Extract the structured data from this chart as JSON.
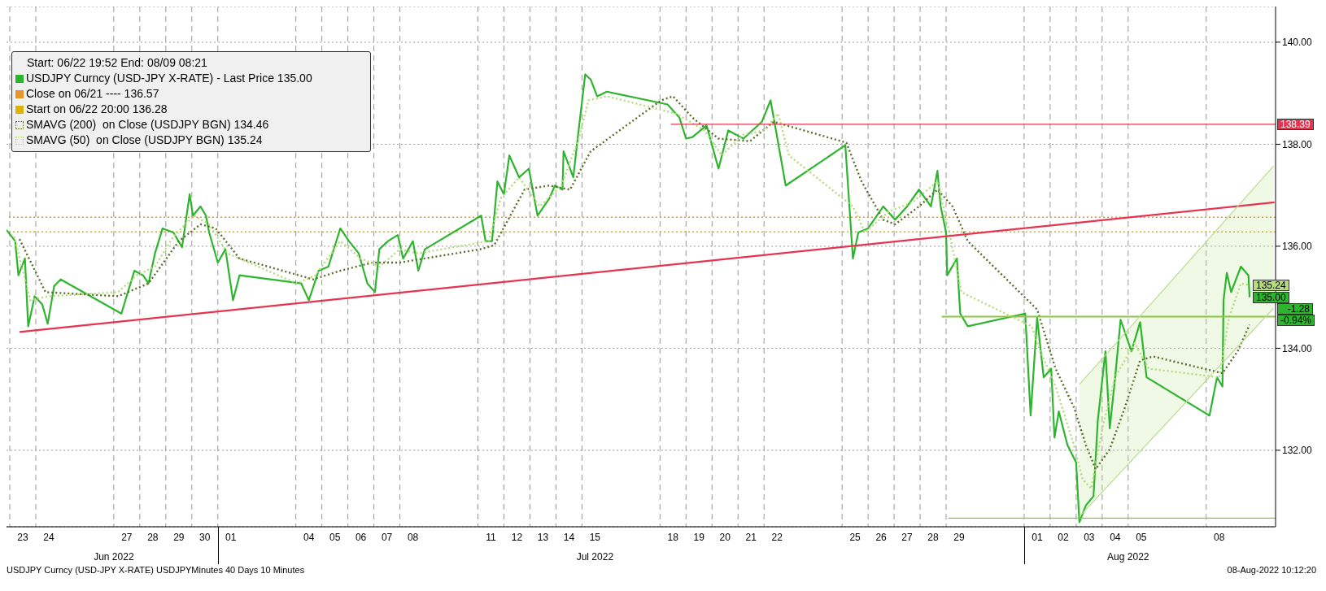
{
  "chart_data": {
    "type": "line",
    "legend_title": "Start: 06/22 19:52 End: 08/09 08:21",
    "legend": "top left",
    "grid": true,
    "xlim": [
      "2022-06-22T21:00",
      "2022-08-10T16:00"
    ],
    "ylim": [
      130.5,
      140.7
    ],
    "yticks": [
      {
        "value": 132,
        "label": "132.00"
      },
      {
        "value": 134,
        "label": "134.00"
      },
      {
        "value": 136,
        "label": "136.00"
      },
      {
        "value": 138,
        "label": "138.00"
      },
      {
        "value": 140,
        "label": "140.00"
      }
    ],
    "xticks": [
      {
        "value": "2022-06-23T12:00",
        "label": "23"
      },
      {
        "value": "2022-06-24T12:00",
        "label": "24"
      },
      {
        "value": "2022-06-27T12:00",
        "label": "27"
      },
      {
        "value": "2022-06-28T12:00",
        "label": "28"
      },
      {
        "value": "2022-06-29T12:00",
        "label": "29"
      },
      {
        "value": "2022-06-30T12:00",
        "label": "30"
      },
      {
        "value": "2022-07-01T12:00",
        "label": "01"
      },
      {
        "value": "2022-07-04T12:00",
        "label": "04"
      },
      {
        "value": "2022-07-05T12:00",
        "label": "05"
      },
      {
        "value": "2022-07-06T12:00",
        "label": "06"
      },
      {
        "value": "2022-07-07T12:00",
        "label": "07"
      },
      {
        "value": "2022-07-08T12:00",
        "label": "08"
      },
      {
        "value": "2022-07-11T12:00",
        "label": "11"
      },
      {
        "value": "2022-07-12T12:00",
        "label": "12"
      },
      {
        "value": "2022-07-13T12:00",
        "label": "13"
      },
      {
        "value": "2022-07-14T12:00",
        "label": "14"
      },
      {
        "value": "2022-07-15T12:00",
        "label": "15"
      },
      {
        "value": "2022-07-18T12:00",
        "label": "18"
      },
      {
        "value": "2022-07-19T12:00",
        "label": "19"
      },
      {
        "value": "2022-07-20T12:00",
        "label": "20"
      },
      {
        "value": "2022-07-21T12:00",
        "label": "21"
      },
      {
        "value": "2022-07-22T12:00",
        "label": "22"
      },
      {
        "value": "2022-07-25T12:00",
        "label": "25"
      },
      {
        "value": "2022-07-26T12:00",
        "label": "26"
      },
      {
        "value": "2022-07-27T12:00",
        "label": "27"
      },
      {
        "value": "2022-07-28T12:00",
        "label": "28"
      },
      {
        "value": "2022-07-29T12:00",
        "label": "29"
      },
      {
        "value": "2022-08-01T12:00",
        "label": "01"
      },
      {
        "value": "2022-08-02T12:00",
        "label": "02"
      },
      {
        "value": "2022-08-03T12:00",
        "label": "03"
      },
      {
        "value": "2022-08-04T12:00",
        "label": "04"
      },
      {
        "value": "2022-08-05T12:00",
        "label": "05"
      },
      {
        "value": "2022-08-08T12:00",
        "label": "08"
      }
    ],
    "series": [
      {
        "name": "USDJPY Curncy (USD-JPY X-RATE) - Last Price 135.00",
        "color": "#2db52d",
        "x": [
          "2022-06-22T21:00",
          "2022-06-23T05:00",
          "2022-06-23T08:00",
          "2022-06-23T14:00",
          "2022-06-23T17:00",
          "2022-06-23T23:00",
          "2022-06-24T06:00",
          "2022-06-24T11:00",
          "2022-06-24T17:00",
          "2022-06-24T23:00",
          "2022-06-27T07:00",
          "2022-06-27T13:00",
          "2022-06-27T19:00",
          "2022-06-28T03:00",
          "2022-06-28T08:00",
          "2022-06-28T14:00",
          "2022-06-28T21:00",
          "2022-06-29T07:00",
          "2022-06-29T15:00",
          "2022-06-29T22:00",
          "2022-06-30T01:00",
          "2022-06-30T08:00",
          "2022-06-30T13:00",
          "2022-06-30T16:00",
          "2022-07-01T00:00",
          "2022-07-01T07:00",
          "2022-07-01T14:00",
          "2022-07-01T20:00",
          "2022-07-04T05:00",
          "2022-07-04T12:00",
          "2022-07-04T21:00",
          "2022-07-05T06:00",
          "2022-07-05T17:00",
          "2022-07-06T01:00",
          "2022-07-06T10:00",
          "2022-07-06T18:00",
          "2022-07-07T01:00",
          "2022-07-07T05:00",
          "2022-07-07T13:00",
          "2022-07-07T22:00",
          "2022-07-08T03:00",
          "2022-07-08T12:00",
          "2022-07-08T17:00",
          "2022-07-08T23:00",
          "2022-07-11T03:00",
          "2022-07-11T07:00",
          "2022-07-11T13:00",
          "2022-07-11T18:00",
          "2022-07-12T00:00",
          "2022-07-12T05:00",
          "2022-07-12T14:00",
          "2022-07-12T23:00",
          "2022-07-13T07:00",
          "2022-07-13T18:00",
          "2022-07-13T23:00",
          "2022-07-14T06:00",
          "2022-07-14T07:00",
          "2022-07-14T16:00",
          "2022-07-14T20:00",
          "2022-07-15T03:00",
          "2022-07-15T08:00",
          "2022-07-15T14:00",
          "2022-07-15T23:00",
          "2022-07-18T07:00",
          "2022-07-18T18:00",
          "2022-07-19T00:00",
          "2022-07-19T06:00",
          "2022-07-19T19:00",
          "2022-07-20T06:00",
          "2022-07-20T15:00",
          "2022-07-21T05:00",
          "2022-07-21T22:00",
          "2022-07-22T06:00",
          "2022-07-22T11:00",
          "2022-07-22T20:00",
          "2022-07-25T03:00",
          "2022-07-25T10:00",
          "2022-07-25T15:00",
          "2022-07-26T00:00",
          "2022-07-26T14:00",
          "2022-07-27T01:00",
          "2022-07-27T12:00",
          "2022-07-27T23:00",
          "2022-07-28T10:00",
          "2022-07-28T16:00",
          "2022-07-28T19:00",
          "2022-07-29T00:00",
          "2022-07-29T01:00",
          "2022-07-29T10:00",
          "2022-07-29T13:00",
          "2022-07-29T20:00",
          "2022-08-01T01:00",
          "2022-08-01T06:00",
          "2022-08-01T12:00",
          "2022-08-01T18:00",
          "2022-08-02T01:00",
          "2022-08-02T04:00",
          "2022-08-02T08:00",
          "2022-08-02T16:00",
          "2022-08-03T00:00",
          "2022-08-03T03:00",
          "2022-08-03T09:00",
          "2022-08-03T16:00",
          "2022-08-03T20:00",
          "2022-08-04T03:00",
          "2022-08-04T07:00",
          "2022-08-04T12:00",
          "2022-08-04T17:00",
          "2022-08-05T03:00",
          "2022-08-05T11:00",
          "2022-08-05T17:00",
          "2022-08-08T03:00",
          "2022-08-08T10:00",
          "2022-08-08T15:00",
          "2022-08-08T16:00",
          "2022-08-08T19:00",
          "2022-08-08T23:00",
          "2022-08-09T08:00",
          "2022-08-09T15:00",
          "2022-08-09T16:00"
        ],
        "values": [
          136.32,
          136.1,
          135.43,
          135.76,
          134.43,
          135.02,
          134.86,
          134.48,
          135.22,
          135.35,
          134.68,
          135.1,
          135.52,
          135.43,
          135.27,
          135.86,
          136.35,
          136.27,
          135.98,
          137.02,
          136.6,
          136.78,
          136.6,
          136.27,
          135.68,
          135.94,
          134.94,
          135.43,
          135.27,
          134.94,
          135.52,
          135.6,
          136.35,
          136.1,
          135.86,
          135.27,
          135.1,
          135.94,
          136.1,
          136.22,
          135.76,
          136.1,
          135.52,
          135.94,
          136.6,
          136.1,
          136.1,
          137.27,
          137.02,
          137.78,
          137.35,
          137.52,
          136.6,
          136.94,
          137.19,
          137.11,
          137.86,
          137.35,
          138.11,
          139.37,
          139.27,
          138.94,
          139.03,
          138.78,
          138.52,
          138.11,
          138.14,
          138.37,
          137.52,
          138.27,
          138.11,
          138.44,
          138.86,
          138.27,
          137.19,
          137.98,
          135.76,
          136.27,
          136.35,
          136.78,
          136.52,
          136.78,
          137.11,
          136.78,
          137.48,
          136.78,
          136.27,
          135.43,
          135.76,
          134.68,
          134.43,
          134.68,
          132.68,
          134.6,
          133.43,
          133.6,
          132.25,
          132.76,
          132.1,
          131.76,
          130.59,
          130.92,
          131.1,
          132.59,
          133.94,
          132.43,
          133.43,
          134.56,
          133.94,
          134.51,
          133.43,
          132.68,
          133.43,
          133.25,
          134.94,
          135.48,
          135.1,
          135.6,
          135.43,
          135.0
        ],
        "value_labels": [
          null,
          null,
          null,
          null,
          null,
          null,
          null,
          null,
          null,
          null,
          null,
          null,
          null,
          null,
          null,
          null,
          null,
          null,
          null,
          null,
          null,
          null,
          null,
          null,
          null,
          null,
          null,
          null,
          null,
          null,
          null,
          null,
          null,
          null,
          null,
          null,
          null,
          null,
          null,
          null,
          null,
          null,
          null,
          null,
          null,
          null,
          null,
          null,
          null,
          null,
          null,
          null,
          null,
          null,
          null,
          null,
          null,
          null,
          null,
          null,
          null,
          null,
          null,
          null,
          null,
          null,
          null,
          null,
          null,
          null,
          null,
          null,
          null,
          null,
          null,
          null,
          null,
          null,
          null,
          null,
          null,
          null,
          null,
          null,
          null,
          null,
          null,
          null,
          null,
          null,
          null,
          null,
          null,
          null,
          null,
          null,
          null,
          null,
          null,
          null,
          null,
          null,
          null,
          null,
          null,
          null,
          null,
          null,
          null,
          null,
          null,
          null,
          null,
          null,
          null,
          null,
          null,
          null,
          null,
          null
        ]
      },
      {
        "name": "SMAVG (200)  on Close (USDJPY BGN) 134.46",
        "line_style": "dotted",
        "color": "#5a6e2a",
        "x": [
          "2022-06-23T09:00",
          "2022-06-24T09:00",
          "2022-06-27T04:00",
          "2022-06-28T08:00",
          "2022-06-29T12:00",
          "2022-06-30T08:00",
          "2022-06-30T22:00",
          "2022-07-01T20:00",
          "2022-07-04T16:00",
          "2022-07-05T17:00",
          "2022-07-06T23:00",
          "2022-07-08T00:00",
          "2022-07-11T02:00",
          "2022-07-11T15:00",
          "2022-07-12T19:00",
          "2022-07-13T18:00",
          "2022-07-14T13:00",
          "2022-07-15T08:00",
          "2022-07-18T01:00",
          "2022-07-18T12:00",
          "2022-07-19T06:00",
          "2022-07-20T06:00",
          "2022-07-21T11:00",
          "2022-07-22T09:00",
          "2022-07-25T04:00",
          "2022-07-25T18:00",
          "2022-07-26T14:00",
          "2022-07-27T01:00",
          "2022-07-27T23:00",
          "2022-07-28T16:00",
          "2022-07-29T06:00",
          "2022-07-29T20:00",
          "2022-08-01T12:00",
          "2022-08-02T05:00",
          "2022-08-02T22:00",
          "2022-08-03T09:00",
          "2022-08-03T18:00",
          "2022-08-04T07:00",
          "2022-08-04T21:00",
          "2022-08-05T11:00",
          "2022-08-05T23:00",
          "2022-08-08T15:00",
          "2022-08-09T05:00",
          "2022-08-09T16:00"
        ],
        "values": [
          136.14,
          135.1,
          135.02,
          135.27,
          136.1,
          136.43,
          136.35,
          135.76,
          135.35,
          135.52,
          135.68,
          135.68,
          135.94,
          136.02,
          137.11,
          137.19,
          137.11,
          137.86,
          138.86,
          138.94,
          138.52,
          138.11,
          138.06,
          138.44,
          138.03,
          137.27,
          136.52,
          136.43,
          136.78,
          137.11,
          136.78,
          136.1,
          134.76,
          133.6,
          132.84,
          132.1,
          131.63,
          132.02,
          132.84,
          133.76,
          133.84,
          133.51,
          133.94,
          134.46
        ]
      },
      {
        "name": "SMAVG (50)  on Close (USDJPY BGN) 135.24",
        "line_style": "dotted",
        "color": "#b5dc7a",
        "x": [
          "2022-06-23T04:00",
          "2022-06-23T19:00",
          "2022-06-24T12:00",
          "2022-06-27T04:00",
          "2022-06-27T21:00",
          "2022-06-28T14:00",
          "2022-06-29T07:00",
          "2022-06-30T02:00",
          "2022-06-30T16:00",
          "2022-07-01T09:00",
          "2022-07-04T01:00",
          "2022-07-04T18:00",
          "2022-07-05T17:00",
          "2022-07-06T12:00",
          "2022-07-07T05:00",
          "2022-07-08T00:00",
          "2022-07-08T17:00",
          "2022-07-11T10:00",
          "2022-07-11T21:00",
          "2022-07-12T14:00",
          "2022-07-13T09:00",
          "2022-07-14T05:00",
          "2022-07-14T21:00",
          "2022-07-15T06:00",
          "2022-07-15T23:00",
          "2022-07-18T15:00",
          "2022-07-19T17:00",
          "2022-07-20T09:00",
          "2022-07-21T05:00",
          "2022-07-22T00:00",
          "2022-07-22T13:00",
          "2022-07-22T23:00",
          "2022-07-25T10:00",
          "2022-07-25T21:00",
          "2022-07-26T19:00",
          "2022-07-27T17:00",
          "2022-07-28T16:00",
          "2022-07-29T03:00",
          "2022-07-29T14:00",
          "2022-08-01T07:00",
          "2022-08-01T15:00",
          "2022-08-02T05:00",
          "2022-08-02T22:00",
          "2022-08-03T06:00",
          "2022-08-03T14:00",
          "2022-08-04T01:00",
          "2022-08-04T12:00",
          "2022-08-05T06:00",
          "2022-08-05T19:00",
          "2022-08-08T12:00",
          "2022-08-08T21:00",
          "2022-08-09T08:00",
          "2022-08-09T16:00"
        ],
        "values": [
          136.19,
          134.94,
          135.02,
          135.1,
          135.43,
          135.6,
          136.19,
          136.6,
          136.43,
          135.86,
          135.27,
          135.43,
          136.1,
          135.76,
          135.6,
          135.94,
          135.86,
          136.1,
          136.94,
          137.35,
          136.78,
          137.19,
          138.11,
          138.86,
          138.94,
          138.6,
          138.27,
          137.78,
          138.19,
          138.27,
          138.6,
          137.78,
          136.78,
          136.27,
          136.68,
          136.86,
          137.27,
          136.27,
          135.1,
          134.43,
          133.94,
          133.25,
          132.1,
          131.43,
          131.25,
          132.51,
          133.43,
          134.1,
          133.6,
          133.43,
          134.6,
          135.27,
          135.24
        ],
        "value_labels": [
          null,
          null,
          null,
          null,
          null,
          null,
          null,
          null,
          null,
          null,
          null,
          null,
          null,
          null,
          null,
          null,
          null,
          null,
          null,
          null,
          null,
          null,
          null,
          null,
          null,
          null,
          null,
          null,
          null,
          null,
          null,
          null,
          null,
          null,
          null,
          null,
          null,
          null,
          null,
          null,
          null,
          null,
          null,
          null,
          null,
          null,
          null,
          null,
          null,
          null,
          null,
          null,
          null
        ]
      },
      {
        "color": "#e8334f",
        "x": [
          "2022-06-23T09:00",
          "2022-08-10T15:00"
        ],
        "values": [
          134.32,
          136.86
        ]
      },
      {
        "color": "#e8334f",
        "x": [
          "2022-07-18T10:00",
          "2022-08-10T16:00"
        ],
        "values": [
          138.39,
          138.39
        ],
        "value_labels": [
          null,
          "138.39"
        ]
      },
      {
        "color": "#8cc63f",
        "x": [
          "2022-07-28T20:00",
          "2022-08-10T16:00"
        ],
        "values": [
          134.62,
          134.62
        ]
      },
      {
        "color": "#8cc63f",
        "x": [
          "2022-07-29T02:00",
          "2022-08-10T16:00"
        ],
        "values": [
          130.67,
          130.67
        ]
      },
      {
        "color": "#b9dd8e",
        "x": [
          "2022-08-03T03:00",
          "2022-08-10T14:00"
        ],
        "values": [
          null,
          null
        ],
        "lower": [
          130.7,
          134.78
        ],
        "upper": [
          133.29,
          137.57
        ]
      },
      {
        "color": "#b9dd8e",
        "x": [
          "2022-08-03T03:00",
          "2022-08-10T14:00"
        ],
        "values": [
          133.29,
          137.57
        ]
      },
      {
        "color": "#b9dd8e",
        "x": [
          "2022-08-03T03:00",
          "2022-08-10T14:00"
        ],
        "values": [
          130.7,
          134.78
        ]
      }
    ],
    "ref_lines": [
      {
        "axis": "y",
        "value": 136.57,
        "label": "Close on 06/21 ---- 136.57",
        "color": "#e8962a",
        "line_style": "dotted"
      },
      {
        "axis": "y",
        "value": 136.28,
        "label": "Start on 06/22 20:00 136.28",
        "color": "#d9b400",
        "line_style": "dotted"
      }
    ],
    "annotations": [
      "USDJPY Curncy (USD-JPY X-RATE) USDJPYMinutes 40 Days 10 Minutes",
      "Jun 2022",
      "Jul 2022",
      "Aug 2022",
      "08-Aug-2022 10:12:20",
      {
        "text": "135.24",
        "x": "2022-08-09T16:00",
        "y": 135.24
      },
      {
        "text": "135.00",
        "x": "2022-08-09T16:00",
        "y": 135.0
      },
      {
        "text": "-1.28",
        "x": "2022-08-10T16:00",
        "y": 134.77
      },
      {
        "text": "-0.94%",
        "x": "2022-08-10T16:00",
        "y": 134.55
      }
    ]
  }
}
